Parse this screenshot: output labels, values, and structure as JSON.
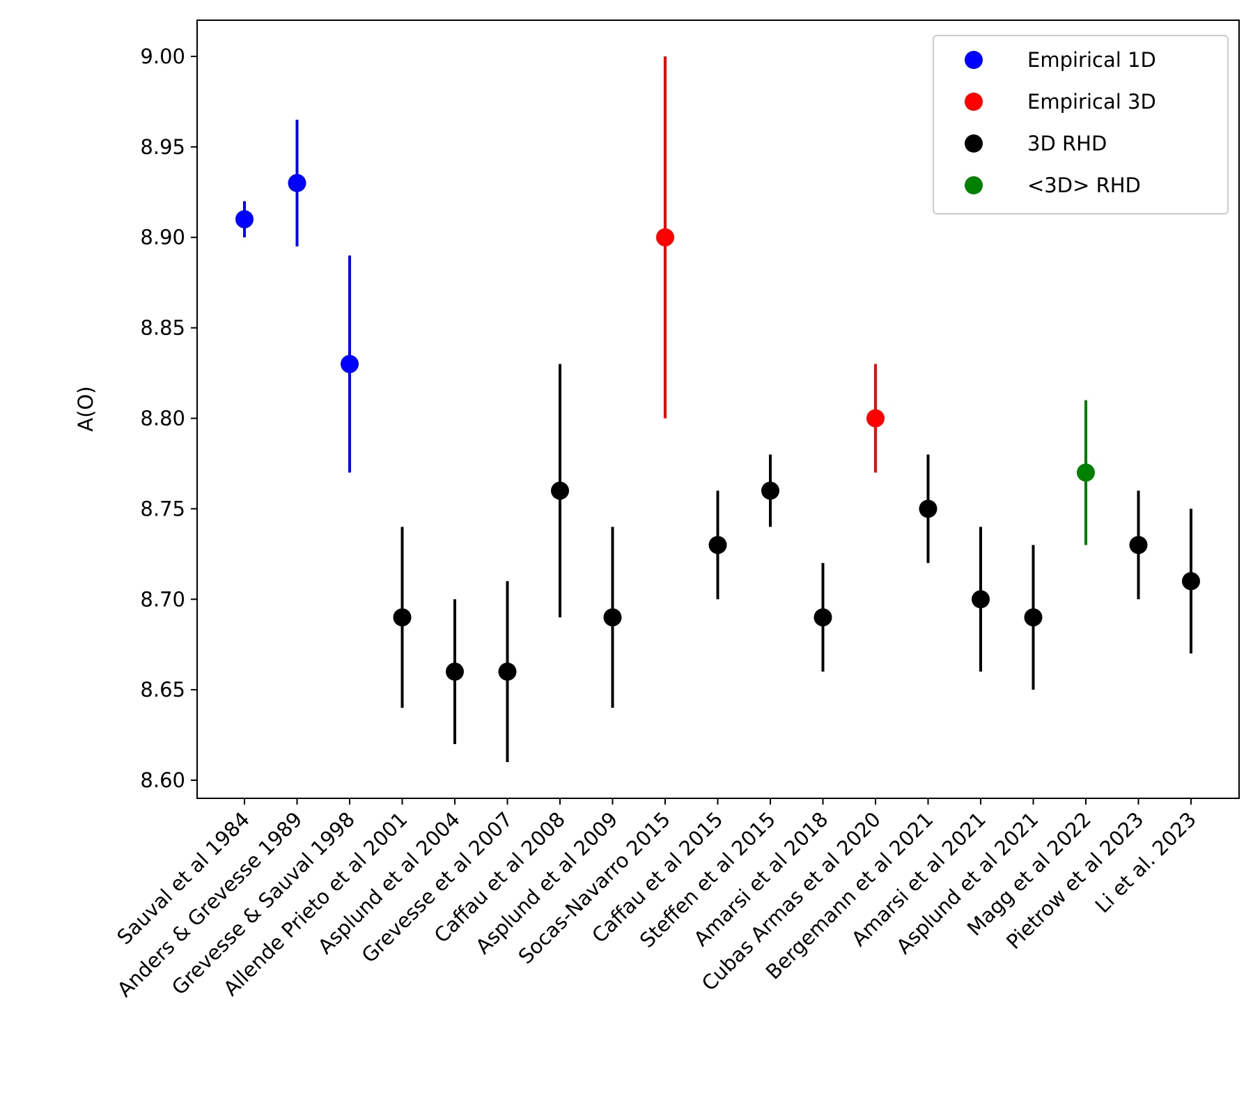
{
  "chart_data": {
    "type": "scatter",
    "title": "",
    "xlabel": "",
    "ylabel": "A(O)",
    "ylim": [
      8.59,
      9.02
    ],
    "yticks": [
      "8.60",
      "8.65",
      "8.70",
      "8.75",
      "8.80",
      "8.85",
      "8.90",
      "8.95",
      "9.00"
    ],
    "legend": {
      "placement": "upper-right",
      "entries": [
        {
          "label": "Empirical 1D",
          "color": "#0000ff",
          "key": "e1d"
        },
        {
          "label": "Empirical 3D",
          "color": "#ff0000",
          "key": "e3d"
        },
        {
          "label": "3D RHD",
          "color": "#000000",
          "key": "rhd3d"
        },
        {
          "label": "<3D> RHD",
          "color": "#008000",
          "key": "rhd3davg"
        }
      ]
    },
    "points": [
      {
        "label": "Sauval et al 1984",
        "value": 8.91,
        "err_low": 8.9,
        "err_high": 8.92,
        "group": "e1d"
      },
      {
        "label": "Anders & Grevesse 1989",
        "value": 8.93,
        "err_low": 8.895,
        "err_high": 8.965,
        "group": "e1d"
      },
      {
        "label": "Grevesse & Sauval 1998",
        "value": 8.83,
        "err_low": 8.77,
        "err_high": 8.89,
        "group": "e1d"
      },
      {
        "label": "Allende Prieto et al 2001",
        "value": 8.69,
        "err_low": 8.64,
        "err_high": 8.74,
        "group": "rhd3d"
      },
      {
        "label": "Asplund et al 2004",
        "value": 8.66,
        "err_low": 8.62,
        "err_high": 8.7,
        "group": "rhd3d"
      },
      {
        "label": "Grevesse et al 2007",
        "value": 8.66,
        "err_low": 8.61,
        "err_high": 8.71,
        "group": "rhd3d"
      },
      {
        "label": "Caffau et al 2008",
        "value": 8.76,
        "err_low": 8.69,
        "err_high": 8.83,
        "group": "rhd3d"
      },
      {
        "label": "Asplund et al 2009",
        "value": 8.69,
        "err_low": 8.64,
        "err_high": 8.74,
        "group": "rhd3d"
      },
      {
        "label": "Socas-Navarro 2015",
        "value": 8.9,
        "err_low": 8.8,
        "err_high": 9.0,
        "group": "e3d"
      },
      {
        "label": "Caffau et al 2015",
        "value": 8.73,
        "err_low": 8.7,
        "err_high": 8.76,
        "group": "rhd3d"
      },
      {
        "label": "Steffen et al 2015",
        "value": 8.76,
        "err_low": 8.74,
        "err_high": 8.78,
        "group": "rhd3d"
      },
      {
        "label": "Amarsi et al 2018",
        "value": 8.69,
        "err_low": 8.66,
        "err_high": 8.72,
        "group": "rhd3d"
      },
      {
        "label": "Cubas Armas et al 2020",
        "value": 8.8,
        "err_low": 8.77,
        "err_high": 8.83,
        "group": "e3d"
      },
      {
        "label": "Bergemann et al 2021",
        "value": 8.75,
        "err_low": 8.72,
        "err_high": 8.78,
        "group": "rhd3d"
      },
      {
        "label": "Amarsi et al 2021",
        "value": 8.7,
        "err_low": 8.66,
        "err_high": 8.74,
        "group": "rhd3d"
      },
      {
        "label": "Asplund et al 2021",
        "value": 8.69,
        "err_low": 8.65,
        "err_high": 8.73,
        "group": "rhd3d"
      },
      {
        "label": "Magg et al 2022",
        "value": 8.77,
        "err_low": 8.73,
        "err_high": 8.81,
        "group": "rhd3davg"
      },
      {
        "label": "Pietrow et al 2023",
        "value": 8.73,
        "err_low": 8.7,
        "err_high": 8.76,
        "group": "rhd3d"
      },
      {
        "label": "Li et al. 2023",
        "value": 8.71,
        "err_low": 8.67,
        "err_high": 8.75,
        "group": "rhd3d"
      }
    ]
  }
}
